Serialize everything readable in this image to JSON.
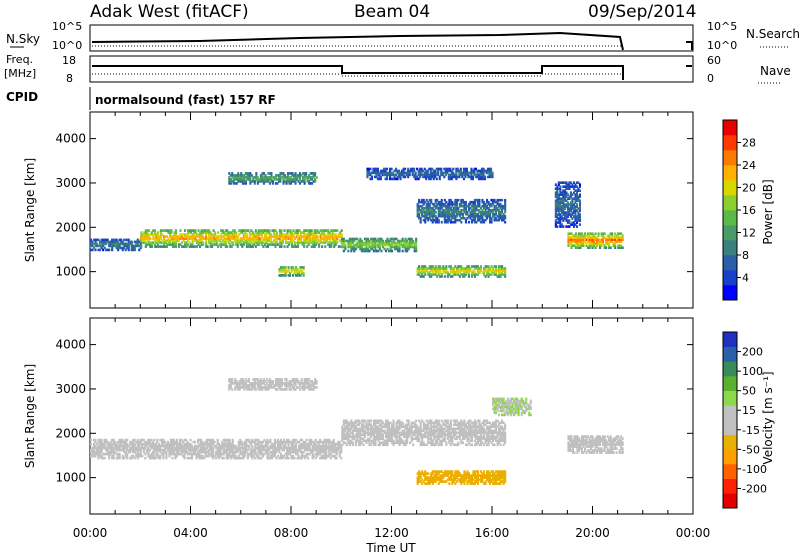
{
  "header": {
    "station": "Adak West (fitACF)",
    "beam": "Beam 04",
    "date": "09/Sep/2014"
  },
  "strip_labels": {
    "nsky": "N.Sky",
    "nsky_ticks": [
      "10^5",
      "10^0"
    ],
    "nsearch": "N.Search",
    "nsearch_ticks": [
      "10^5",
      "10^0"
    ],
    "freq": "Freq.",
    "freq_unit": "[MHz]",
    "freq_ticks": [
      "18",
      "8"
    ],
    "nave": "Nave",
    "nave_ticks": [
      "60",
      "0"
    ],
    "cpid": "CPID",
    "cpid_value": "normalsound (fast) 157 RF"
  },
  "panels": {
    "ylabel": "Slant Range [km]",
    "yticks": [
      "4000",
      "3000",
      "2000",
      "1000"
    ],
    "xlabel": "Time UT",
    "xticks": [
      "00:00",
      "04:00",
      "08:00",
      "12:00",
      "16:00",
      "20:00",
      "00:00"
    ]
  },
  "colorbars": {
    "power_label": "Power [dB]",
    "power_ticks": [
      "28",
      "24",
      "20",
      "16",
      "12",
      "8",
      "4"
    ],
    "power_colors": [
      "#0000ff",
      "#1840c8",
      "#2a60a8",
      "#3a8080",
      "#4a9a6a",
      "#5cb848",
      "#8cd030",
      "#d8d800",
      "#ffb000",
      "#ff7a00",
      "#ff3800",
      "#e80000"
    ],
    "velocity_label": "Velocity [m s⁻¹]",
    "velocity_ticks": [
      "200",
      "100",
      "50",
      "15",
      "-15",
      "-50",
      "-100",
      "-200"
    ],
    "velocity_colors": [
      "#2030c0",
      "#2a60a8",
      "#3a8a5a",
      "#5ab030",
      "#8cd848",
      "#c0c0c0",
      "#c0c0c0",
      "#e8b000",
      "#ffa000",
      "#ff6000",
      "#ff2000",
      "#e00000"
    ]
  },
  "chart_data": [
    {
      "type": "heatmap",
      "title": "Power",
      "xlabel": "Time UT",
      "ylabel": "Slant Range [km]",
      "xlim_hours": [
        0,
        24
      ],
      "ylim_km": [
        180,
        4600
      ],
      "clim_db": [
        0,
        32
      ],
      "echo_regions": [
        {
          "t_start": 0.0,
          "t_end": 2.0,
          "range_center_km": 1600,
          "range_width_km": 250,
          "power_db": 10
        },
        {
          "t_start": 2.0,
          "t_end": 10.0,
          "range_center_km": 1750,
          "range_width_km": 400,
          "power_db": 24
        },
        {
          "t_start": 10.0,
          "t_end": 13.0,
          "range_center_km": 1600,
          "range_width_km": 300,
          "power_db": 18
        },
        {
          "t_start": 13.0,
          "t_end": 16.5,
          "range_center_km": 2350,
          "range_width_km": 500,
          "power_db": 10
        },
        {
          "t_start": 5.5,
          "t_end": 9.0,
          "range_center_km": 3100,
          "range_width_km": 250,
          "power_db": 14
        },
        {
          "t_start": 11.0,
          "t_end": 16.0,
          "range_center_km": 3200,
          "range_width_km": 250,
          "power_db": 8
        },
        {
          "t_start": 13.0,
          "t_end": 16.5,
          "range_center_km": 1000,
          "range_width_km": 250,
          "power_db": 22
        },
        {
          "t_start": 7.5,
          "t_end": 8.5,
          "range_center_km": 1000,
          "range_width_km": 200,
          "power_db": 22
        },
        {
          "t_start": 19.0,
          "t_end": 21.2,
          "range_center_km": 1700,
          "range_width_km": 350,
          "power_db": 26
        },
        {
          "t_start": 18.5,
          "t_end": 19.5,
          "range_center_km": 2500,
          "range_width_km": 1000,
          "power_db": 8
        }
      ]
    },
    {
      "type": "heatmap",
      "title": "Velocity",
      "xlabel": "Time UT",
      "ylabel": "Slant Range [km]",
      "xlim_hours": [
        0,
        24
      ],
      "ylim_km": [
        180,
        4600
      ],
      "clim_ms": [
        -200,
        200
      ],
      "echo_regions": [
        {
          "t_start": 0.0,
          "t_end": 10.0,
          "range_center_km": 1650,
          "range_width_km": 450,
          "velocity_ms": 0
        },
        {
          "t_start": 10.0,
          "t_end": 16.5,
          "range_center_km": 2000,
          "range_width_km": 550,
          "velocity_ms": 0
        },
        {
          "t_start": 5.5,
          "t_end": 9.0,
          "range_center_km": 3100,
          "range_width_km": 250,
          "velocity_ms": 0
        },
        {
          "t_start": 13.0,
          "t_end": 16.5,
          "range_center_km": 1000,
          "range_width_km": 300,
          "velocity_ms": -60
        },
        {
          "t_start": 16.0,
          "t_end": 17.5,
          "range_center_km": 2600,
          "range_width_km": 400,
          "velocity_ms": 30
        },
        {
          "t_start": 19.0,
          "t_end": 21.2,
          "range_center_km": 1750,
          "range_width_km": 400,
          "velocity_ms": 0
        }
      ]
    }
  ]
}
